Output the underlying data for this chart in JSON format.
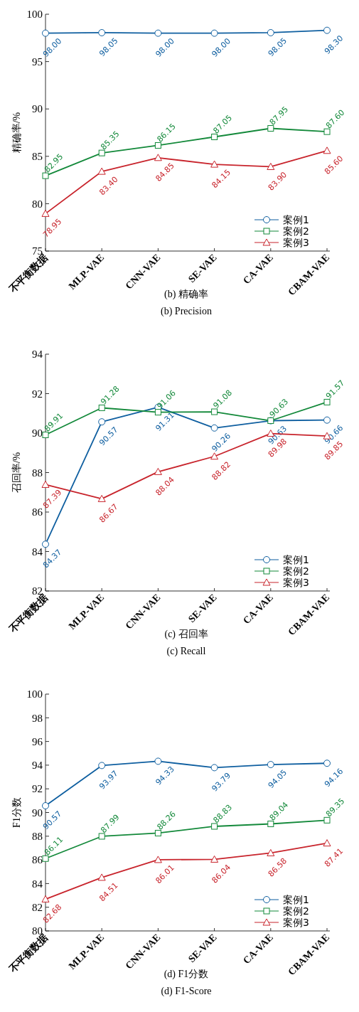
{
  "chart_data": [
    {
      "type": "line",
      "ylabel": "精确率/%",
      "categories": [
        "不平衡数据",
        "MLP-VAE",
        "CNN-VAE",
        "SE-VAE",
        "CA-VAE",
        "CBAM-VAE"
      ],
      "ylim": [
        75,
        100
      ],
      "yticks": [
        75,
        80,
        85,
        90,
        95,
        100
      ],
      "legend": "bottom right",
      "annotations": [
        "(b) 精确率",
        "(b) Precision"
      ],
      "series": [
        {
          "name": "案例1",
          "color": "#0f5fa0",
          "marker": "circle",
          "values": [
            98.0,
            98.05,
            98.0,
            98.0,
            98.05,
            98.3
          ],
          "value_labels": [
            "98.00",
            "98.05",
            "98.00",
            "98.00",
            "98.05",
            "98.30"
          ]
        },
        {
          "name": "案例2",
          "color": "#13893a",
          "marker": "square",
          "values": [
            82.95,
            85.35,
            86.15,
            87.05,
            87.95,
            87.6
          ],
          "value_labels": [
            "82.95",
            "85.35",
            "86.15",
            "87.05",
            "87.95",
            "87.60"
          ]
        },
        {
          "name": "案例3",
          "color": "#c8242c",
          "marker": "triangle",
          "values": [
            78.95,
            83.4,
            84.85,
            84.15,
            83.9,
            85.6
          ],
          "value_labels": [
            "78.95",
            "83.40",
            "84.85",
            "84.15",
            "83.90",
            "85.60"
          ]
        }
      ]
    },
    {
      "type": "line",
      "ylabel": "召回率/%",
      "categories": [
        "不平衡数据",
        "MLP-VAE",
        "CNN-VAE",
        "SE-VAE",
        "CA-VAE",
        "CBAM-VAE"
      ],
      "ylim": [
        82,
        94
      ],
      "yticks": [
        82,
        84,
        86,
        88,
        90,
        92,
        94
      ],
      "legend": "bottom right",
      "annotations": [
        "(c) 召回率",
        "(c) Recall"
      ],
      "series": [
        {
          "name": "案例1",
          "color": "#0f5fa0",
          "marker": "circle",
          "values": [
            84.37,
            90.57,
            91.31,
            90.26,
            90.63,
            90.66
          ],
          "value_labels": [
            "84.37",
            "90.57",
            "91.31",
            "90.26",
            "90.63",
            "90.66"
          ]
        },
        {
          "name": "案例2",
          "color": "#13893a",
          "marker": "square",
          "values": [
            89.91,
            91.28,
            91.06,
            91.08,
            90.63,
            91.57
          ],
          "value_labels": [
            "89.91",
            "91.28",
            "91.06",
            "91.08",
            "90.63",
            "91.57"
          ]
        },
        {
          "name": "案例3",
          "color": "#c8242c",
          "marker": "triangle",
          "values": [
            87.39,
            86.67,
            88.04,
            88.82,
            89.98,
            89.85
          ],
          "value_labels": [
            "87.39",
            "86.67",
            "88.04",
            "88.82",
            "89.98",
            "89.85"
          ]
        }
      ]
    },
    {
      "type": "line",
      "ylabel": "F1分数",
      "categories": [
        "不平衡数据",
        "MLP-VAE",
        "CNN-VAE",
        "SE-VAE",
        "CA-VAE",
        "CBAM-VAE"
      ],
      "ylim": [
        80,
        100
      ],
      "yticks": [
        80,
        82,
        84,
        86,
        88,
        90,
        92,
        94,
        96,
        98,
        100
      ],
      "legend": "bottom right",
      "annotations": [
        "(d) F1分数",
        "(d) F1-Score"
      ],
      "series": [
        {
          "name": "案例1",
          "color": "#0f5fa0",
          "marker": "circle",
          "values": [
            90.57,
            93.97,
            94.33,
            93.79,
            94.05,
            94.16
          ],
          "value_labels": [
            "90.57",
            "93.97",
            "94.33",
            "93.79",
            "94.05",
            "94.16"
          ]
        },
        {
          "name": "案例2",
          "color": "#13893a",
          "marker": "square",
          "values": [
            86.11,
            87.99,
            88.26,
            88.83,
            89.04,
            89.35
          ],
          "value_labels": [
            "86.11",
            "87.99",
            "88.26",
            "88.83",
            "89.04",
            "89.35"
          ]
        },
        {
          "name": "案例3",
          "color": "#c8242c",
          "marker": "triangle",
          "values": [
            82.68,
            84.51,
            86.01,
            86.04,
            86.58,
            87.41
          ],
          "value_labels": [
            "82.68",
            "84.51",
            "86.01",
            "86.04",
            "86.58",
            "87.41"
          ]
        }
      ]
    }
  ]
}
